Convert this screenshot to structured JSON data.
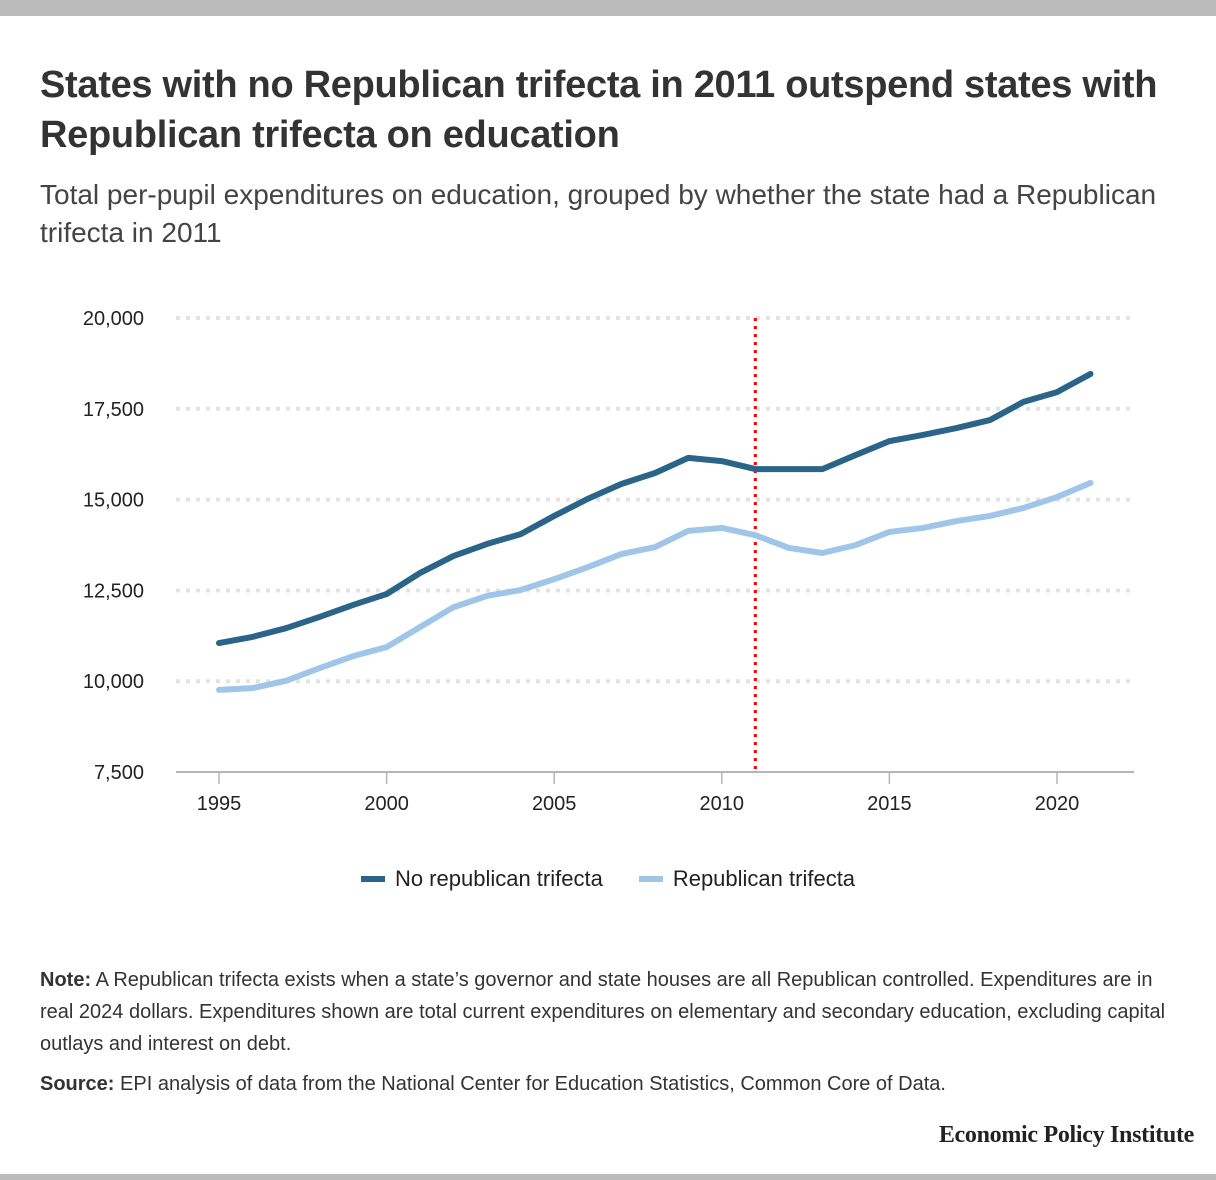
{
  "header": {
    "title": "States with no Republican trifecta in 2011 outspend states with Republican trifecta on education",
    "subtitle": "Total per-pupil expenditures on education, grouped by whether the state had a Republican trifecta in 2011"
  },
  "chart_data": {
    "type": "line",
    "title": "States with no Republican trifecta in 2011 outspend states with Republican trifecta on education",
    "subtitle": "Total per-pupil expenditures on education, grouped by whether the state had a Republican trifecta in 2011",
    "xlabel": "",
    "ylabel": "",
    "x": [
      1995,
      1996,
      1997,
      1998,
      1999,
      2000,
      2001,
      2002,
      2003,
      2004,
      2005,
      2006,
      2007,
      2008,
      2009,
      2010,
      2011,
      2012,
      2013,
      2014,
      2015,
      2016,
      2017,
      2018,
      2019,
      2020,
      2021
    ],
    "xlim": [
      1994,
      2022.3
    ],
    "ylim": [
      7500,
      20000
    ],
    "x_ticks": [
      1995,
      2000,
      2005,
      2010,
      2015,
      2020
    ],
    "x_tick_labels": [
      "1995",
      "2000",
      "2005",
      "2010",
      "2015",
      "2020"
    ],
    "y_ticks": [
      7500,
      10000,
      12500,
      15000,
      17500,
      20000
    ],
    "y_tick_labels": [
      "7,500",
      "10,000",
      "12,500",
      "15,000",
      "17,500",
      "20,000"
    ],
    "grid": "horizontal dotted",
    "legend_position": "bottom-center",
    "series": [
      {
        "name": "No republican trifecta",
        "color": "#2a6489",
        "values": [
          11050,
          11220,
          11460,
          11770,
          12100,
          12400,
          12980,
          13450,
          13780,
          14050,
          14550,
          15020,
          15430,
          15730,
          16150,
          16060,
          15840,
          15840,
          15840,
          16230,
          16610,
          16780,
          16970,
          17190,
          17690,
          17960,
          18460
        ]
      },
      {
        "name": "Republican trifecta",
        "color": "#9fc6e9",
        "values": [
          9760,
          9810,
          10010,
          10360,
          10690,
          10940,
          11490,
          12040,
          12350,
          12510,
          12810,
          13140,
          13500,
          13690,
          14140,
          14220,
          14020,
          13670,
          13530,
          13750,
          14110,
          14220,
          14410,
          14550,
          14770,
          15070,
          15460
        ]
      }
    ],
    "annotations": [
      {
        "type": "vertical-reference-line",
        "x": 2011,
        "color": "#ff0000",
        "style": "dotted"
      }
    ]
  },
  "legend": {
    "items": [
      {
        "label": "No republican trifecta",
        "color": "#2a6489"
      },
      {
        "label": "Republican trifecta",
        "color": "#9fc6e9"
      }
    ]
  },
  "notes": {
    "note_label": "Note:",
    "note_text": " A Republican trifecta exists when a state’s governor and state houses are all Republican controlled. Expenditures are in real 2024 dollars. Expenditures shown are total current expenditures on elementary and secondary education, excluding capital outlays and interest on debt.",
    "source_label": "Source:",
    "source_text": " EPI analysis of data from the National Center for Education Statistics, Common Core of Data."
  },
  "brand": "Economic Policy Institute"
}
